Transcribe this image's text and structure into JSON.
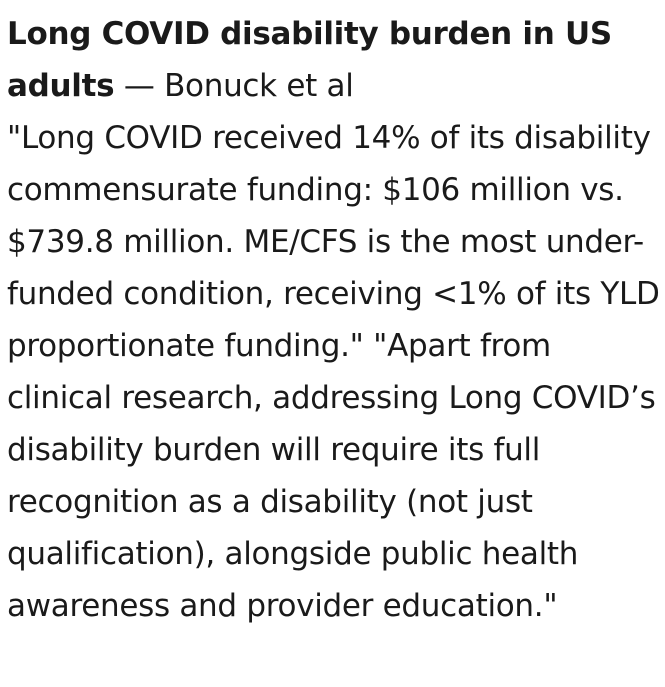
{
  "post": {
    "title": "Long COVID disability burden in US adults",
    "separator": " — ",
    "author": "Bonuck et al",
    "quote": "\"Long COVID received 14% of its disability commensurate funding: $106 million vs. $739.8 million. ME/CFS is the most under-funded condition, receiving <1% of its YLD proportionate funding.\" \"Apart from clinical research, addressing Long COVID’s disability burden will require its full recognition as a disability (not just qualification), alongside public health awareness and provider education.\""
  }
}
